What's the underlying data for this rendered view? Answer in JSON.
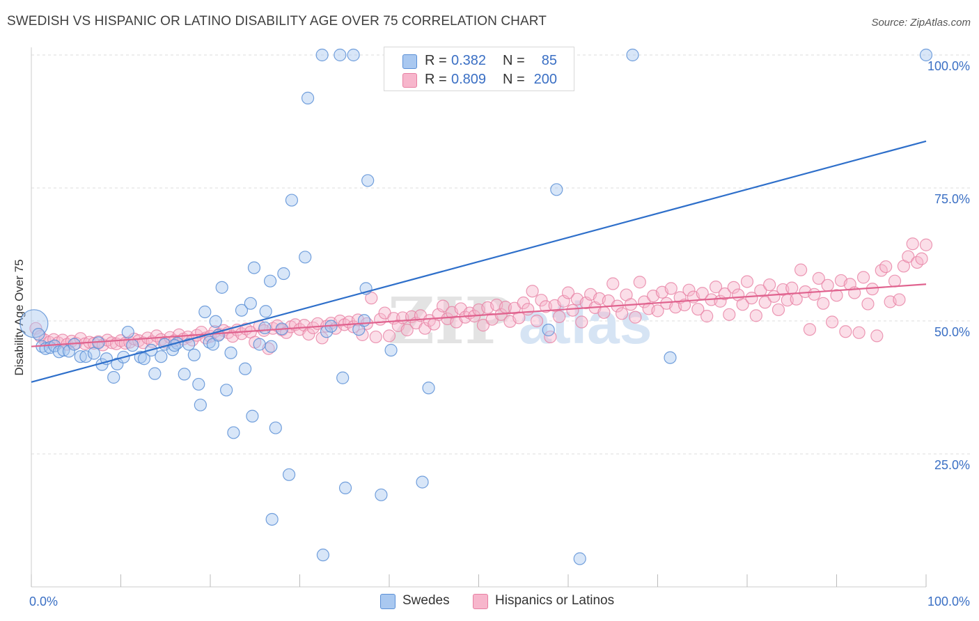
{
  "title": "SWEDISH VS HISPANIC OR LATINO DISABILITY AGE OVER 75 CORRELATION CHART",
  "source": "Source: ZipAtlas.com",
  "watermark": "ZIPatlas",
  "legend_top": {
    "rows": [
      {
        "r_label": "R =",
        "r_value": "0.382",
        "n_label": "N =",
        "n_value": "85"
      },
      {
        "r_label": "R =",
        "r_value": "0.809",
        "n_label": "N =",
        "n_value": "200"
      }
    ]
  },
  "legend_bottom": {
    "items": [
      {
        "label": "Swedes"
      },
      {
        "label": "Hispanics or Latinos"
      }
    ]
  },
  "colors": {
    "swedes_fill": "#a9c8f0",
    "swedes_stroke": "#5a8fd6",
    "swedes_line": "#2e6fca",
    "hispanics_fill": "#f7b6cc",
    "hispanics_stroke": "#e77fa2",
    "hispanics_line": "#e0628e",
    "value_text": "#3a6fc4",
    "grid": "#dddddd"
  },
  "chart_data": {
    "type": "scatter",
    "ylabel": "Disability Age Over 75",
    "xlabel": "",
    "xlim": [
      0,
      100
    ],
    "ylim": [
      0,
      100
    ],
    "x_tick_labels": [
      "0.0%",
      "100.0%"
    ],
    "y_ticks": [
      25,
      50,
      75,
      100
    ],
    "y_tick_labels": [
      "25.0%",
      "50.0%",
      "75.0%",
      "100.0%"
    ],
    "grid": true,
    "legend_position": "bottom",
    "series": [
      {
        "name": "Swedes",
        "R": 0.382,
        "N": 85,
        "trend": {
          "x": [
            0,
            100
          ],
          "y": [
            38.5,
            83.8
          ]
        },
        "points": [
          [
            0.3,
            49.5
          ],
          [
            0.8,
            47.5
          ],
          [
            1.2,
            45.2
          ],
          [
            1.6,
            44.8
          ],
          [
            2.1,
            45.0
          ],
          [
            2.6,
            45.3
          ],
          [
            3.1,
            44.2
          ],
          [
            3.6,
            44.5
          ],
          [
            4.2,
            44.3
          ],
          [
            4.8,
            45.6
          ],
          [
            5.5,
            43.3
          ],
          [
            6.1,
            43.3
          ],
          [
            7.0,
            43.9
          ],
          [
            7.9,
            41.8
          ],
          [
            8.4,
            42.9
          ],
          [
            9.2,
            39.4
          ],
          [
            9.6,
            41.9
          ],
          [
            10.3,
            43.2
          ],
          [
            10.8,
            47.9
          ],
          [
            11.3,
            45.4
          ],
          [
            12.2,
            43.2
          ],
          [
            12.6,
            42.9
          ],
          [
            13.4,
            44.5
          ],
          [
            13.8,
            40.1
          ],
          [
            14.5,
            43.3
          ],
          [
            14.9,
            45.6
          ],
          [
            15.8,
            44.6
          ],
          [
            16.3,
            45.8
          ],
          [
            17.1,
            40.0
          ],
          [
            17.6,
            45.6
          ],
          [
            18.2,
            43.6
          ],
          [
            18.7,
            38.1
          ],
          [
            18.9,
            34.2
          ],
          [
            19.4,
            51.7
          ],
          [
            19.9,
            46.0
          ],
          [
            20.3,
            45.6
          ],
          [
            20.6,
            49.9
          ],
          [
            20.9,
            47.3
          ],
          [
            21.3,
            56.3
          ],
          [
            21.8,
            37.0
          ],
          [
            22.3,
            44.0
          ],
          [
            22.6,
            29.0
          ],
          [
            23.5,
            52.0
          ],
          [
            23.9,
            41.0
          ],
          [
            24.5,
            53.3
          ],
          [
            24.7,
            32.1
          ],
          [
            24.9,
            60.0
          ],
          [
            26.1,
            48.7
          ],
          [
            26.2,
            51.8
          ],
          [
            26.7,
            57.5
          ],
          [
            26.8,
            45.2
          ],
          [
            26.9,
            12.7
          ],
          [
            27.3,
            29.9
          ],
          [
            28.2,
            58.9
          ],
          [
            28.8,
            21.1
          ],
          [
            29.1,
            72.7
          ],
          [
            30.6,
            62.0
          ],
          [
            30.9,
            91.9
          ],
          [
            32.5,
            100.0
          ],
          [
            34.5,
            100.0
          ],
          [
            34.8,
            39.3
          ],
          [
            35.1,
            18.6
          ],
          [
            36.0,
            100.0
          ],
          [
            36.6,
            48.4
          ],
          [
            37.2,
            50.1
          ],
          [
            37.4,
            56.1
          ],
          [
            37.6,
            76.4
          ],
          [
            39.1,
            17.3
          ],
          [
            40.2,
            44.5
          ],
          [
            43.7,
            19.7
          ],
          [
            44.4,
            37.4
          ],
          [
            57.3,
            100.0
          ],
          [
            57.8,
            48.3
          ],
          [
            58.7,
            74.7
          ],
          [
            61.3,
            5.3
          ],
          [
            67.2,
            100.0
          ],
          [
            71.4,
            43.1
          ],
          [
            100.0,
            100.0
          ],
          [
            32.6,
            6.0
          ],
          [
            33.0,
            48.0
          ],
          [
            7.5,
            45.9
          ],
          [
            16.0,
            45.4
          ],
          [
            25.5,
            45.6
          ],
          [
            28.0,
            48.5
          ],
          [
            33.5,
            49.0
          ]
        ]
      },
      {
        "name": "Hispanics or Latinos",
        "R": 0.809,
        "N": 200,
        "trend": {
          "x": [
            0,
            100
          ],
          "y": [
            45.2,
            56.9
          ]
        },
        "points": [
          [
            0.5,
            48.6
          ],
          [
            1.0,
            47.1
          ],
          [
            1.5,
            46.4
          ],
          [
            2.0,
            46.0
          ],
          [
            2.5,
            46.5
          ],
          [
            3.0,
            45.9
          ],
          [
            3.5,
            46.4
          ],
          [
            4.0,
            45.6
          ],
          [
            4.5,
            46.2
          ],
          [
            5.0,
            45.8
          ],
          [
            5.5,
            46.7
          ],
          [
            6.0,
            45.7
          ],
          [
            6.5,
            46.0
          ],
          [
            7.0,
            45.8
          ],
          [
            7.5,
            46.1
          ],
          [
            8.0,
            45.5
          ],
          [
            8.5,
            46.4
          ],
          [
            9.0,
            45.9
          ],
          [
            9.5,
            45.7
          ],
          [
            10.0,
            46.3
          ],
          [
            10.5,
            45.8
          ],
          [
            11.0,
            46.0
          ],
          [
            11.5,
            46.6
          ],
          [
            12.0,
            46.3
          ],
          [
            12.5,
            45.9
          ],
          [
            13.0,
            46.8
          ],
          [
            13.5,
            46.1
          ],
          [
            14.0,
            47.2
          ],
          [
            14.5,
            46.5
          ],
          [
            15.0,
            46.0
          ],
          [
            15.5,
            46.9
          ],
          [
            16.0,
            46.3
          ],
          [
            16.5,
            47.4
          ],
          [
            17.0,
            46.6
          ],
          [
            17.5,
            47.0
          ],
          [
            18.0,
            46.4
          ],
          [
            18.5,
            47.3
          ],
          [
            19.0,
            47.9
          ],
          [
            19.5,
            46.8
          ],
          [
            20.0,
            47.1
          ],
          [
            20.5,
            48.0
          ],
          [
            21.0,
            47.5
          ],
          [
            21.5,
            48.2
          ],
          [
            22.0,
            47.8
          ],
          [
            22.5,
            47.1
          ],
          [
            23.0,
            48.3
          ],
          [
            23.5,
            47.6
          ],
          [
            24.0,
            48.5
          ],
          [
            24.5,
            47.9
          ],
          [
            25.0,
            46.0
          ],
          [
            25.5,
            49.0
          ],
          [
            26.0,
            48.2
          ],
          [
            26.5,
            44.8
          ],
          [
            27.0,
            48.6
          ],
          [
            27.5,
            49.1
          ],
          [
            28.0,
            48.3
          ],
          [
            28.5,
            47.8
          ],
          [
            29.0,
            48.9
          ],
          [
            29.5,
            49.3
          ],
          [
            30.0,
            48.4
          ],
          [
            30.5,
            49.2
          ],
          [
            31.0,
            47.5
          ],
          [
            31.5,
            48.7
          ],
          [
            32.0,
            49.5
          ],
          [
            32.5,
            46.8
          ],
          [
            33.0,
            49.0
          ],
          [
            33.5,
            49.6
          ],
          [
            34.0,
            48.6
          ],
          [
            34.5,
            50.0
          ],
          [
            35.0,
            49.3
          ],
          [
            35.5,
            49.8
          ],
          [
            36.0,
            48.9
          ],
          [
            36.5,
            50.2
          ],
          [
            37.0,
            47.4
          ],
          [
            37.5,
            49.5
          ],
          [
            38.0,
            54.3
          ],
          [
            38.5,
            47.0
          ],
          [
            39.0,
            50.3
          ],
          [
            39.5,
            51.5
          ],
          [
            40.0,
            47.2
          ],
          [
            40.5,
            50.5
          ],
          [
            41.0,
            49.1
          ],
          [
            41.5,
            50.6
          ],
          [
            42.0,
            48.3
          ],
          [
            42.5,
            50.8
          ],
          [
            43.0,
            49.6
          ],
          [
            43.5,
            51.0
          ],
          [
            44.0,
            48.6
          ],
          [
            44.5,
            50.1
          ],
          [
            45.0,
            49.4
          ],
          [
            45.5,
            51.2
          ],
          [
            46.0,
            52.8
          ],
          [
            46.5,
            50.4
          ],
          [
            47.0,
            51.6
          ],
          [
            47.5,
            49.8
          ],
          [
            48.0,
            52.3
          ],
          [
            48.5,
            50.7
          ],
          [
            49.0,
            51.5
          ],
          [
            49.5,
            50.9
          ],
          [
            50.0,
            52.1
          ],
          [
            50.5,
            49.2
          ],
          [
            51.0,
            52.5
          ],
          [
            51.5,
            50.3
          ],
          [
            52.0,
            53.0
          ],
          [
            52.5,
            51.2
          ],
          [
            53.0,
            52.6
          ],
          [
            53.5,
            49.9
          ],
          [
            54.0,
            52.4
          ],
          [
            54.5,
            50.6
          ],
          [
            55.0,
            53.4
          ],
          [
            55.5,
            52.2
          ],
          [
            56.0,
            55.6
          ],
          [
            56.5,
            50.0
          ],
          [
            57.0,
            53.9
          ],
          [
            57.5,
            52.7
          ],
          [
            58.0,
            47.0
          ],
          [
            58.5,
            52.9
          ],
          [
            59.0,
            50.8
          ],
          [
            59.5,
            53.7
          ],
          [
            60.0,
            55.3
          ],
          [
            60.5,
            52.0
          ],
          [
            61.0,
            54.1
          ],
          [
            61.5,
            49.8
          ],
          [
            62.0,
            53.4
          ],
          [
            62.5,
            55.0
          ],
          [
            63.0,
            52.5
          ],
          [
            63.5,
            54.2
          ],
          [
            64.0,
            51.6
          ],
          [
            64.5,
            53.8
          ],
          [
            65.0,
            57.0
          ],
          [
            65.5,
            52.8
          ],
          [
            66.0,
            51.4
          ],
          [
            66.5,
            54.9
          ],
          [
            67.0,
            53.1
          ],
          [
            67.5,
            50.7
          ],
          [
            68.0,
            57.3
          ],
          [
            68.5,
            53.6
          ],
          [
            69.0,
            52.3
          ],
          [
            69.5,
            54.7
          ],
          [
            70.0,
            51.9
          ],
          [
            70.5,
            55.4
          ],
          [
            71.0,
            53.3
          ],
          [
            71.5,
            56.1
          ],
          [
            72.0,
            52.6
          ],
          [
            72.5,
            54.4
          ],
          [
            73.0,
            53.0
          ],
          [
            73.5,
            55.8
          ],
          [
            74.0,
            54.5
          ],
          [
            74.5,
            52.2
          ],
          [
            75.0,
            55.2
          ],
          [
            75.5,
            50.9
          ],
          [
            76.0,
            54.0
          ],
          [
            76.5,
            56.4
          ],
          [
            77.0,
            53.7
          ],
          [
            77.5,
            55.1
          ],
          [
            78.0,
            51.2
          ],
          [
            78.5,
            56.3
          ],
          [
            79.0,
            54.9
          ],
          [
            79.5,
            53.1
          ],
          [
            80.0,
            57.4
          ],
          [
            80.5,
            54.3
          ],
          [
            81.0,
            51.0
          ],
          [
            81.5,
            55.7
          ],
          [
            82.0,
            53.5
          ],
          [
            82.5,
            56.8
          ],
          [
            83.0,
            54.6
          ],
          [
            83.5,
            52.1
          ],
          [
            84.0,
            55.9
          ],
          [
            84.5,
            53.9
          ],
          [
            85.0,
            56.2
          ],
          [
            85.5,
            54.1
          ],
          [
            86.0,
            59.6
          ],
          [
            86.5,
            55.5
          ],
          [
            87.0,
            48.4
          ],
          [
            87.5,
            55.0
          ],
          [
            88.0,
            58.0
          ],
          [
            88.5,
            53.3
          ],
          [
            89.0,
            56.7
          ],
          [
            89.5,
            49.8
          ],
          [
            90.0,
            54.8
          ],
          [
            90.5,
            57.6
          ],
          [
            91.0,
            48.0
          ],
          [
            91.5,
            56.9
          ],
          [
            92.0,
            55.3
          ],
          [
            92.5,
            47.8
          ],
          [
            93.0,
            58.2
          ],
          [
            93.5,
            53.2
          ],
          [
            94.0,
            56.0
          ],
          [
            94.5,
            47.2
          ],
          [
            95.0,
            59.5
          ],
          [
            95.5,
            60.2
          ],
          [
            96.0,
            53.6
          ],
          [
            96.5,
            57.5
          ],
          [
            97.0,
            54.0
          ],
          [
            97.5,
            60.3
          ],
          [
            98.0,
            62.1
          ],
          [
            98.5,
            64.5
          ],
          [
            99.0,
            61.0
          ],
          [
            99.5,
            61.7
          ],
          [
            100.0,
            64.3
          ]
        ]
      }
    ]
  }
}
